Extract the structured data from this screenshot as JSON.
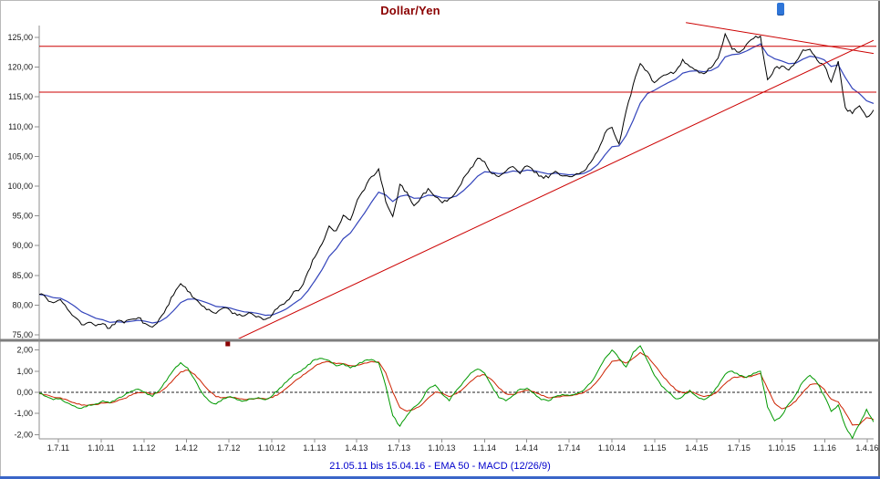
{
  "header": {
    "title": "Dollar/Yen"
  },
  "footer": {
    "caption": "21.05.11 bis 15.04.16 - EMA 50 - MACD (12/26/9)"
  },
  "chart_data": {
    "type": "line",
    "title": "Dollar/Yen",
    "period_label": "21.05.11 bis 15.04.16",
    "indicators": [
      "EMA 50",
      "MACD (12/26/9)"
    ],
    "colors": {
      "price": "#000000",
      "ema": "#3344bb",
      "macd": "#009900",
      "signal": "#cc2200",
      "annotation": "#cc0000",
      "title": "#8b0000",
      "caption": "#0000cc"
    },
    "price_axis": {
      "values": [
        125,
        120,
        115,
        110,
        105,
        100,
        95,
        90,
        85,
        80,
        75
      ],
      "labels": [
        "125,00",
        "120,00",
        "115,00",
        "110,00",
        "105,00",
        "100,00",
        "95,00",
        "90,00",
        "85,00",
        "80,00",
        "75,00"
      ]
    },
    "macd_axis": {
      "values": [
        2,
        1,
        0,
        -1,
        -2
      ],
      "labels": [
        "2,00",
        "1,00",
        "0,00",
        "-1,00",
        "-2,00"
      ]
    },
    "x_ticks": {
      "labels": [
        "1.7.11",
        "1.10.11",
        "1.1.12",
        "1.4.12",
        "1.7.12",
        "1.10.12",
        "1.1.13",
        "1.4.13",
        "1.7.13",
        "1.10.13",
        "1.1.14",
        "1.4.14",
        "1.7.14",
        "1.10.14",
        "1.1.15",
        "1.4.15",
        "1.7.15",
        "1.10.15",
        "1.1.16",
        "1.4.16"
      ],
      "fractions": [
        0.0229,
        0.0743,
        0.1256,
        0.1764,
        0.2272,
        0.2786,
        0.33,
        0.3802,
        0.4311,
        0.4824,
        0.5338,
        0.584,
        0.6348,
        0.6862,
        0.7376,
        0.7878,
        0.8386,
        0.89,
        0.9414,
        0.9922
      ]
    },
    "price": [
      81.8,
      81.2,
      80.4,
      80.9,
      79.3,
      78.0,
      76.7,
      77.1,
      76.5,
      76.9,
      76.1,
      77.4,
      77.0,
      77.6,
      77.9,
      76.9,
      76.3,
      77.7,
      79.6,
      81.7,
      83.6,
      82.3,
      81.1,
      79.9,
      79.3,
      78.6,
      79.5,
      79.1,
      78.3,
      78.2,
      78.6,
      78.1,
      77.6,
      78.5,
      79.9,
      80.7,
      82.3,
      82.9,
      85.6,
      88.1,
      90.3,
      93.3,
      92.5,
      95.1,
      94.3,
      97.7,
      99.4,
      101.6,
      102.9,
      97.4,
      94.9,
      100.3,
      99.0,
      96.7,
      98.1,
      99.6,
      98.2,
      97.2,
      97.9,
      99.1,
      101.4,
      103.0,
      104.7,
      104.1,
      102.1,
      101.6,
      102.5,
      103.3,
      102.1,
      103.4,
      102.3,
      101.7,
      101.4,
      102.5,
      101.7,
      101.6,
      102.1,
      102.5,
      104.0,
      105.9,
      108.9,
      109.9,
      107.1,
      112.6,
      117.1,
      120.6,
      119.3,
      117.4,
      118.4,
      118.9,
      119.3,
      121.3,
      120.1,
      119.5,
      118.9,
      119.9,
      121.5,
      125.6,
      123.0,
      122.5,
      123.8,
      124.8,
      125.2,
      117.9,
      119.8,
      120.2,
      119.5,
      120.9,
      122.9,
      123.0,
      121.2,
      120.3,
      117.5,
      121.0,
      113.2,
      112.2,
      113.5,
      111.6,
      112.8
    ],
    "macd": [
      -0.05,
      -0.2,
      -0.35,
      -0.3,
      -0.5,
      -0.65,
      -0.75,
      -0.6,
      -0.55,
      -0.4,
      -0.5,
      -0.3,
      -0.15,
      0.05,
      0.15,
      0.0,
      -0.2,
      0.1,
      0.55,
      1.05,
      1.4,
      1.15,
      0.6,
      0.0,
      -0.4,
      -0.55,
      -0.3,
      -0.2,
      -0.35,
      -0.4,
      -0.3,
      -0.25,
      -0.35,
      -0.15,
      0.2,
      0.5,
      0.85,
      1.0,
      1.3,
      1.55,
      1.6,
      1.5,
      1.25,
      1.35,
      1.15,
      1.3,
      1.5,
      1.55,
      1.4,
      0.3,
      -1.1,
      -1.6,
      -1.1,
      -0.7,
      -0.4,
      0.15,
      0.35,
      -0.1,
      -0.4,
      0.1,
      0.5,
      0.9,
      1.1,
      0.9,
      0.3,
      -0.25,
      -0.4,
      -0.15,
      0.15,
      0.2,
      -0.05,
      -0.35,
      -0.4,
      -0.2,
      -0.1,
      -0.15,
      -0.05,
      0.1,
      0.45,
      1.0,
      1.6,
      2.0,
      1.6,
      1.2,
      1.9,
      2.2,
      1.5,
      0.8,
      0.3,
      0.0,
      -0.3,
      -0.2,
      0.1,
      -0.2,
      -0.35,
      -0.1,
      0.3,
      0.85,
      1.0,
      0.8,
      0.7,
      0.9,
      1.0,
      -0.7,
      -1.35,
      -1.1,
      -0.55,
      -0.1,
      0.5,
      0.8,
      0.45,
      -0.15,
      -0.9,
      -0.6,
      -1.6,
      -2.25,
      -1.5,
      -0.8,
      -1.4
    ],
    "levels": [
      123.5,
      115.8
    ],
    "trendlines": [
      {
        "name": "ascending-support",
        "x1": 0.226,
        "p1": 73.5,
        "x2": 1.0,
        "p2": 124.5
      },
      {
        "name": "descending-resistance",
        "x1": 0.775,
        "p1": 127.5,
        "x2": 1.0,
        "p2": 122.3
      }
    ],
    "marker": {
      "x": 0.226,
      "p": 74.0
    }
  }
}
